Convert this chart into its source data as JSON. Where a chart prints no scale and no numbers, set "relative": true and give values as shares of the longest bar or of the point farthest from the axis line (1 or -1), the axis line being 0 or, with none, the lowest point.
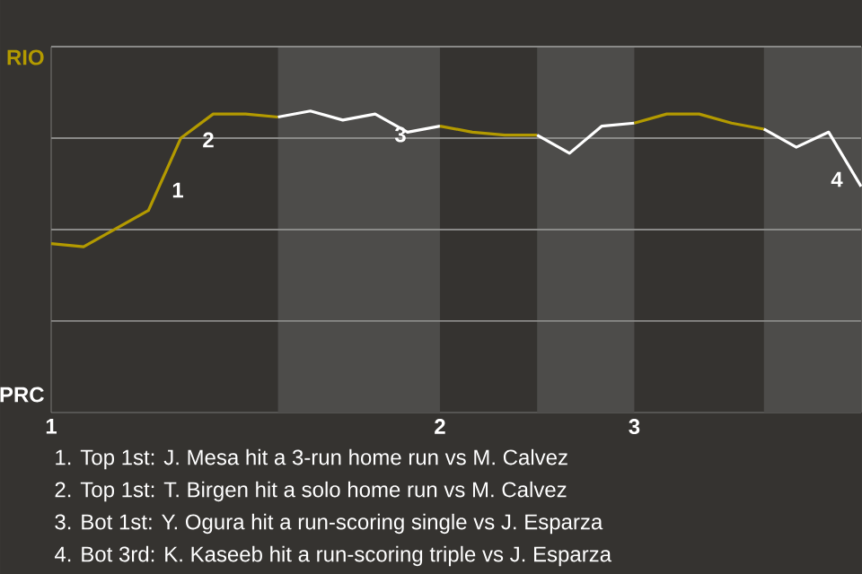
{
  "chart_data": {
    "type": "line",
    "relative": true,
    "categories": [
      "1",
      null,
      null,
      null,
      null,
      null,
      null,
      null,
      null,
      null,
      null,
      null,
      "2",
      null,
      null,
      null,
      null,
      null,
      "3",
      null,
      null,
      null,
      null,
      null,
      null,
      null
    ],
    "grid": "y",
    "series": [
      {
        "color": "#b39a00",
        "values": [
          0.56,
          0.55,
          0.61,
          0.67,
          0.91,
          0.99,
          0.99,
          0.98,
          null,
          null,
          null,
          null,
          null,
          null,
          null,
          null,
          null,
          null,
          null,
          null,
          null,
          null,
          null,
          null,
          null,
          null
        ]
      },
      {
        "color": "#ffffff",
        "values": [
          null,
          null,
          null,
          null,
          null,
          null,
          null,
          0.98,
          1,
          0.97,
          0.99,
          0.93,
          0.95,
          null,
          null,
          null,
          null,
          null,
          null,
          null,
          null,
          null,
          null,
          null,
          null,
          null
        ]
      },
      {
        "color": "#b39a00",
        "values": [
          null,
          null,
          null,
          null,
          null,
          null,
          null,
          null,
          null,
          null,
          null,
          null,
          0.95,
          0.93,
          0.92,
          0.92,
          null,
          null,
          null,
          null,
          null,
          null,
          null,
          null,
          null,
          null
        ]
      },
      {
        "color": "#ffffff",
        "values": [
          null,
          null,
          null,
          null,
          null,
          null,
          null,
          null,
          null,
          null,
          null,
          null,
          null,
          null,
          null,
          0.92,
          0.86,
          0.95,
          0.96,
          null,
          null,
          null,
          null,
          null,
          null,
          null
        ]
      },
      {
        "color": "#b39a00",
        "values": [
          null,
          null,
          null,
          null,
          null,
          null,
          null,
          null,
          null,
          null,
          null,
          null,
          null,
          null,
          null,
          null,
          null,
          null,
          0.96,
          0.99,
          0.99,
          0.96,
          0.94,
          null,
          null,
          null
        ]
      },
      {
        "color": "#ffffff",
        "values": [
          null,
          null,
          null,
          null,
          null,
          null,
          null,
          null,
          null,
          null,
          null,
          null,
          null,
          null,
          null,
          null,
          null,
          null,
          null,
          null,
          null,
          null,
          0.94,
          0.88,
          0.93,
          0.75
        ]
      }
    ],
    "annotations": [
      "1",
      "2",
      "3",
      "4",
      "RIO",
      "PRC",
      "1. Top 1st: J. Mesa hit a 3-run home run vs M. Calvez",
      "2. Top 1st: T. Birgen hit a solo home run vs M. Calvez",
      "3. Bot 1st: Y. Ogura hit a run-scoring single vs J. Esparza",
      "4. Bot 3rd: K. Kaseeb hit a run-scoring triple vs J. Esparza"
    ]
  }
}
